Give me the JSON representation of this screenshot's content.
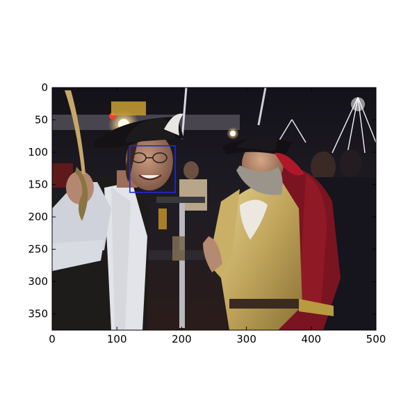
{
  "figure": {
    "axes": {
      "x_ticks": [
        "0",
        "100",
        "200",
        "300",
        "400",
        "500"
      ],
      "y_ticks": [
        "0",
        "50",
        "100",
        "150",
        "200",
        "250",
        "300",
        "350"
      ],
      "xlim": [
        0,
        500
      ],
      "ylim": [
        375,
        0
      ]
    },
    "detection_box": {
      "label": "face",
      "color": "#1f2bd6",
      "x_range": [
        120,
        190
      ],
      "y_range": [
        90,
        162
      ]
    },
    "scene": {
      "sign_text": "",
      "description_colors": {
        "pirate_left_vest": "#1e1c1a",
        "pirate_right_coat": "#7a1420",
        "pirate_right_vest": "#c9b266",
        "background": "#1a1822"
      }
    }
  }
}
